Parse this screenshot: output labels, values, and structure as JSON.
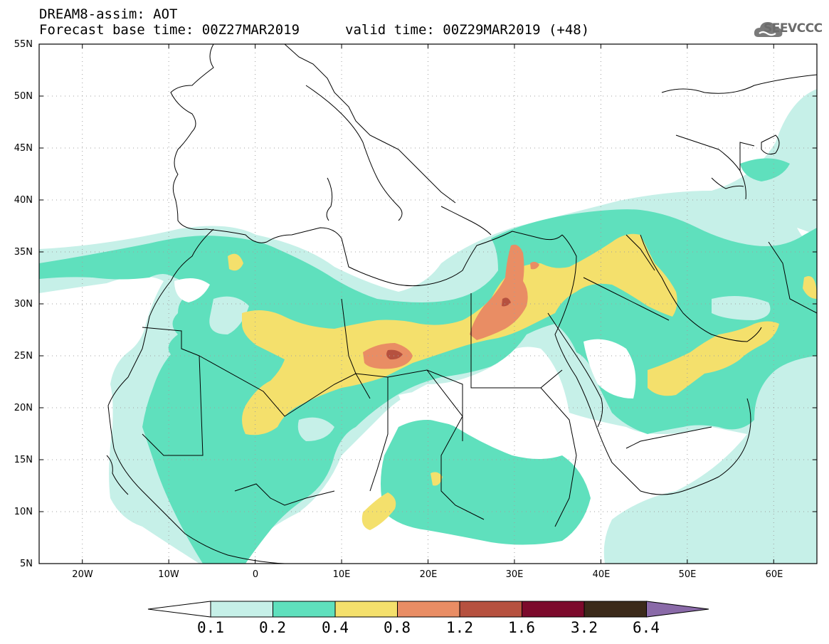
{
  "title": {
    "line1": "DREAM8-assim: AOT",
    "line2": "Forecast base time: 00Z27MAR2019",
    "valid": "valid time: 00Z29MAR2019 (+48)"
  },
  "logo": {
    "text": "SEEVCCC",
    "icon": "cloud-logo-icon"
  },
  "axes": {
    "lat_labels": [
      "55N",
      "50N",
      "45N",
      "40N",
      "35N",
      "30N",
      "25N",
      "20N",
      "15N",
      "10N",
      "5N"
    ],
    "lon_labels": [
      "20W",
      "10W",
      "0",
      "10E",
      "20E",
      "30E",
      "40E",
      "50E",
      "60E"
    ],
    "lat_range": [
      5,
      55
    ],
    "lon_range": [
      -25,
      65
    ],
    "grid": "dotted"
  },
  "colorbar": {
    "labels": [
      "0.1",
      "0.2",
      "0.4",
      "0.8",
      "1.2",
      "1.6",
      "3.2",
      "6.4"
    ],
    "colors": [
      "#ffffff",
      "#c6f0e8",
      "#5fe0bd",
      "#f4e06c",
      "#e98d64",
      "#b6513f",
      "#7c0a2c",
      "#3b2a1a",
      "#8a6aa8"
    ]
  }
}
